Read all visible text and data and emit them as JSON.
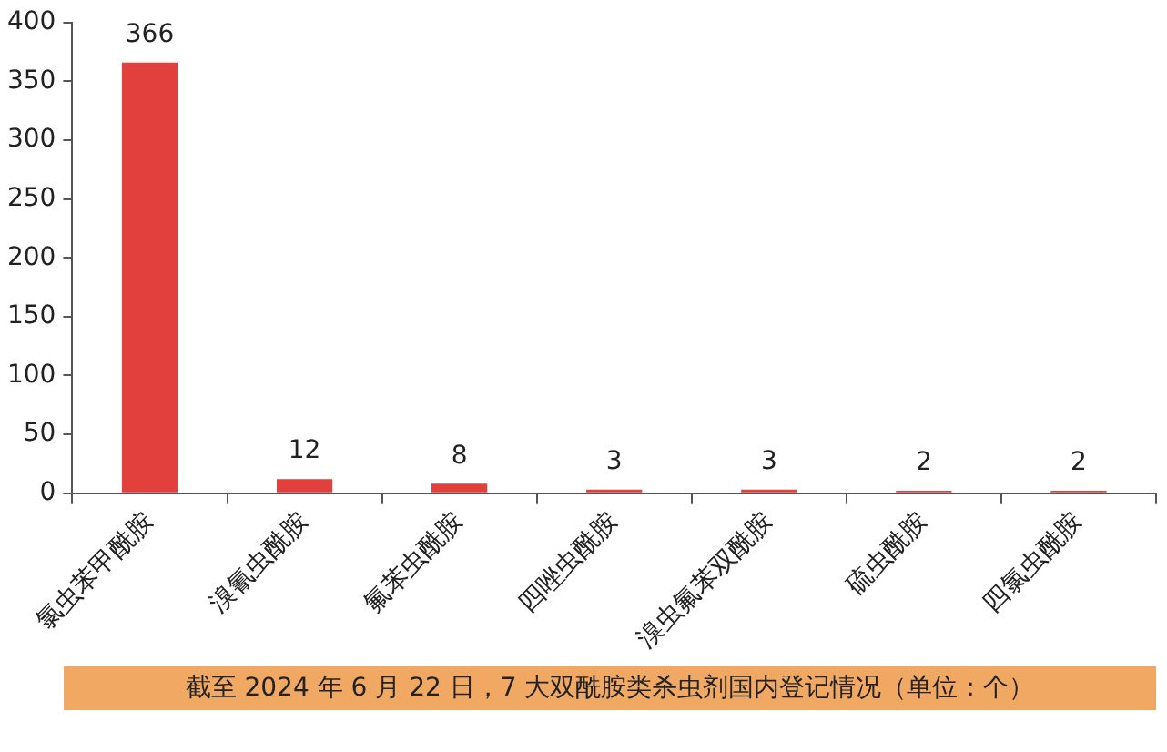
{
  "chart_data": {
    "type": "bar",
    "categories": [
      "氯虫苯甲酰胺",
      "溴氰虫酰胺",
      "氟苯虫酰胺",
      "四唑虫酰胺",
      "溴虫氟苯双酰胺",
      "硫虫酰胺",
      "四氯虫酰胺"
    ],
    "values": [
      366,
      12,
      8,
      3,
      3,
      2,
      2
    ],
    "color": "#e2403c",
    "ylim": [
      0,
      400
    ],
    "yticks": [
      0,
      50,
      100,
      150,
      200,
      250,
      300,
      350,
      400
    ],
    "data_labels": true,
    "grid": false,
    "legend": false,
    "annotations": [
      "截至 2024 年 6 月 22 日，7 大双酰胺类杀虫剂国内登记情况（单位：个）"
    ]
  }
}
